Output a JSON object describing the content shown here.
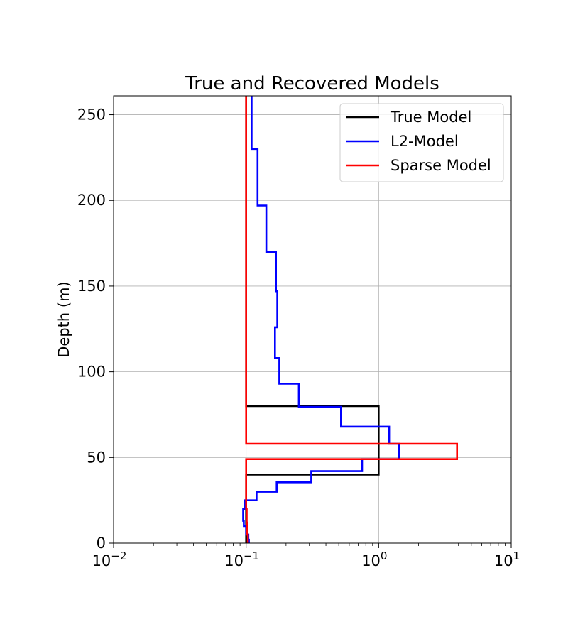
{
  "chart_data": {
    "type": "line",
    "title": "True and Recovered Models",
    "xlabel": "",
    "ylabel": "Depth (m)",
    "xscale": "log",
    "xlim": [
      0.01,
      10
    ],
    "ylim": [
      0,
      261
    ],
    "x_ticks": [
      {
        "value": 0.01,
        "base": "10",
        "exp": "−2"
      },
      {
        "value": 0.1,
        "base": "10",
        "exp": "−1"
      },
      {
        "value": 1,
        "base": "10",
        "exp": "0"
      },
      {
        "value": 10,
        "base": "10",
        "exp": "1"
      }
    ],
    "y_ticks": [
      {
        "value": 0,
        "label": "0"
      },
      {
        "value": 50,
        "label": "50"
      },
      {
        "value": 100,
        "label": "100"
      },
      {
        "value": 150,
        "label": "150"
      },
      {
        "value": 200,
        "label": "200"
      },
      {
        "value": 250,
        "label": "250"
      }
    ],
    "grid": true,
    "legend_position": "top-right",
    "series": [
      {
        "name": "True Model",
        "color": "#000000",
        "points": [
          [
            0.1,
            0
          ],
          [
            0.1,
            40
          ],
          [
            1.0,
            40
          ],
          [
            1.0,
            80
          ],
          [
            0.1,
            80
          ],
          [
            0.1,
            261
          ]
        ]
      },
      {
        "name": "L2-Model",
        "color": "#0000ff",
        "points": [
          [
            0.105,
            0
          ],
          [
            0.105,
            2
          ],
          [
            0.104,
            2
          ],
          [
            0.104,
            5
          ],
          [
            0.1,
            5
          ],
          [
            0.1,
            10
          ],
          [
            0.096,
            10
          ],
          [
            0.096,
            13
          ],
          [
            0.095,
            13
          ],
          [
            0.095,
            20
          ],
          [
            0.098,
            20
          ],
          [
            0.098,
            25
          ],
          [
            0.12,
            25
          ],
          [
            0.12,
            30
          ],
          [
            0.17,
            30
          ],
          [
            0.17,
            35.5
          ],
          [
            0.31,
            35.5
          ],
          [
            0.31,
            42
          ],
          [
            0.75,
            42
          ],
          [
            0.75,
            49
          ],
          [
            1.42,
            49
          ],
          [
            1.42,
            58
          ],
          [
            1.2,
            58
          ],
          [
            1.2,
            68
          ],
          [
            0.52,
            68
          ],
          [
            0.52,
            79.5
          ],
          [
            0.25,
            79.5
          ],
          [
            0.25,
            93
          ],
          [
            0.178,
            93
          ],
          [
            0.178,
            108
          ],
          [
            0.165,
            108
          ],
          [
            0.165,
            126
          ],
          [
            0.172,
            126
          ],
          [
            0.172,
            147
          ],
          [
            0.168,
            147
          ],
          [
            0.168,
            170
          ],
          [
            0.142,
            170
          ],
          [
            0.142,
            197
          ],
          [
            0.122,
            197
          ],
          [
            0.122,
            230
          ],
          [
            0.11,
            230
          ],
          [
            0.11,
            261
          ]
        ]
      },
      {
        "name": "Sparse Model",
        "color": "#ff0000",
        "points": [
          [
            0.103,
            0
          ],
          [
            0.103,
            5
          ],
          [
            0.102,
            5
          ],
          [
            0.102,
            12
          ],
          [
            0.101,
            12
          ],
          [
            0.101,
            20
          ],
          [
            0.1,
            20
          ],
          [
            0.1,
            49
          ],
          [
            3.9,
            49
          ],
          [
            3.9,
            58
          ],
          [
            0.1,
            58
          ],
          [
            0.1,
            261
          ]
        ]
      }
    ]
  }
}
